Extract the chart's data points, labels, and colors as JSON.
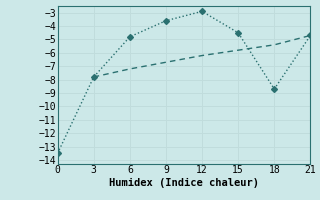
{
  "xlabel": "Humidex (Indice chaleur)",
  "background_color": "#cce8e8",
  "line1_x": [
    0,
    3,
    6,
    9,
    12,
    15,
    18,
    21
  ],
  "line1_y": [
    -13.5,
    -7.8,
    -4.8,
    -3.6,
    -2.9,
    -4.5,
    -8.7,
    -4.7
  ],
  "line2_x": [
    3,
    6,
    9,
    12,
    15,
    18,
    21
  ],
  "line2_y": [
    -7.8,
    -7.2,
    -6.7,
    -6.2,
    -5.8,
    -5.4,
    -4.7
  ],
  "line_color": "#2a7070",
  "xlim": [
    0,
    21
  ],
  "ylim": [
    -14,
    -3
  ],
  "xticks": [
    0,
    3,
    6,
    9,
    12,
    15,
    18,
    21
  ],
  "yticks": [
    -3,
    -4,
    -5,
    -6,
    -7,
    -8,
    -9,
    -10,
    -11,
    -12,
    -13,
    -14
  ],
  "grid_color_minor": "#daeaea",
  "grid_color_major": "#c0dcdc"
}
